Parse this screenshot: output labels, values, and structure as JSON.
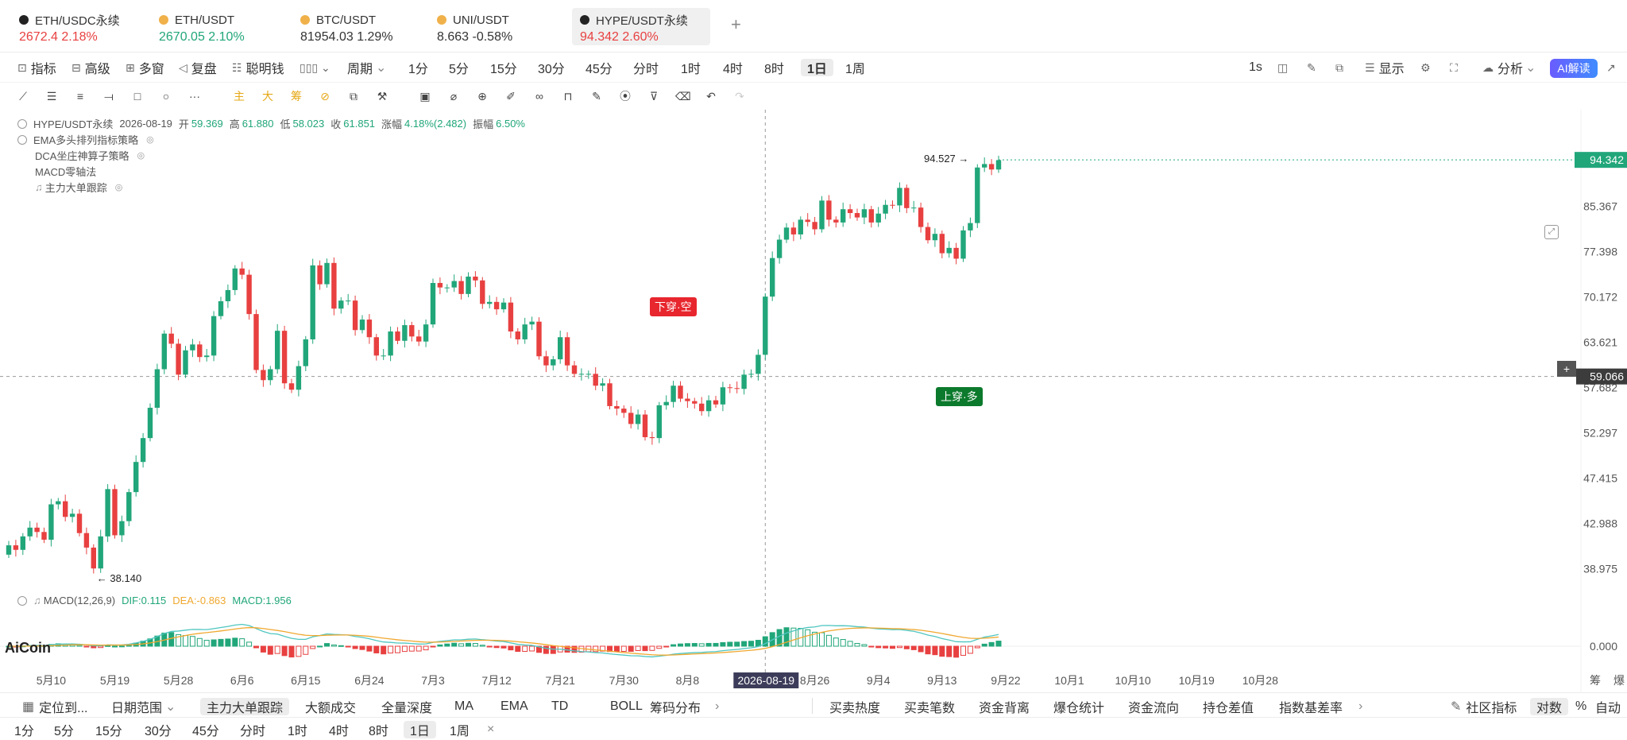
{
  "tabs": [
    {
      "name": "ETH/USDC永续",
      "price": "2672.4",
      "change": "2.18%",
      "dir": "down",
      "icon": "#222",
      "active": false
    },
    {
      "name": "ETH/USDT",
      "price": "2670.05",
      "change": "2.10%",
      "dir": "up",
      "icon": "#f0b14a",
      "active": false
    },
    {
      "name": "BTC/USDT",
      "price": "81954.03",
      "change": "1.29%",
      "dir": "plain",
      "icon": "#f0b14a",
      "active": false
    },
    {
      "name": "UNI/USDT",
      "price": "8.663",
      "change": "-0.58%",
      "dir": "plain",
      "icon": "#f0b14a",
      "active": false
    },
    {
      "name": "HYPE/USDT永续",
      "price": "94.342",
      "change": "2.60%",
      "dir": "down",
      "icon": "#222",
      "active": true
    }
  ],
  "toolbar": {
    "indicators": "指标",
    "advanced": "高级",
    "multi": "多窗",
    "replay": "复盘",
    "smart": "聪明钱",
    "period": "周期",
    "intervals": [
      "1分",
      "5分",
      "15分",
      "30分",
      "45分",
      "分时",
      "1时",
      "4时",
      "8时",
      "1日",
      "1周"
    ],
    "selected_interval": "1日",
    "onesec": "1s",
    "display": "显示",
    "analysis": "分析",
    "ai": "AI解读"
  },
  "legend": {
    "symbol": "HYPE/USDT永续",
    "date": "2026-08-19",
    "open_label": "开",
    "open": "59.369",
    "high_label": "高",
    "high": "61.880",
    "low_label": "低",
    "low": "58.023",
    "close_label": "收",
    "close": "61.851",
    "chg_label": "涨幅",
    "chg": "4.18%(2.482)",
    "amp_label": "振幅",
    "amp": "6.50%",
    "strategies": [
      "EMA多头排列指标策略",
      "DCA坐庄神算子策略",
      "MACD零轴法",
      "主力大单跟踪"
    ]
  },
  "macd_legend": {
    "name": "MACD(12,26,9)",
    "dif": "DIF:0.115",
    "dea": "DEA:-0.863",
    "macd": "MACD:1.956"
  },
  "signals": {
    "sell": "下穿·空",
    "buy": "上穿·多"
  },
  "markers": {
    "high": "94.527",
    "low": "38.140"
  },
  "price_tags": {
    "last": "94.342",
    "cross": "59.066"
  },
  "crosshair_date": "2026-08-19",
  "logo": "AiCoin",
  "colors": {
    "up": "#21a67a",
    "down": "#e84040",
    "dif": "#4fc6c0",
    "dea": "#f0a830"
  },
  "chart_data": {
    "type": "candlestick",
    "title": "HYPE/USDT永续",
    "y_ticks": [
      85.367,
      77.398,
      70.172,
      63.621,
      57.682,
      52.297,
      47.415,
      42.988,
      38.975
    ],
    "ylim": [
      37.5,
      96.5
    ],
    "log_scale": true,
    "x_ticks": [
      "5月10",
      "5月19",
      "5月28",
      "6月6",
      "6月15",
      "6月24",
      "7月3",
      "7月12",
      "7月21",
      "7月30",
      "8月8",
      "2026-08-19",
      "8月26",
      "9月4",
      "9月13",
      "9月22",
      "10月1",
      "10月10",
      "10月19",
      "10月28"
    ],
    "x_tick_index": [
      6,
      15,
      24,
      33,
      42,
      51,
      60,
      69,
      78,
      87,
      96,
      107,
      114,
      123,
      132,
      141,
      150,
      159,
      168,
      177
    ],
    "close": [
      41.0,
      40.6,
      41.8,
      42.6,
      42.2,
      41.5,
      44.8,
      45.1,
      43.6,
      43.9,
      42.1,
      40.8,
      39.0,
      41.8,
      46.3,
      41.9,
      43.2,
      46.0,
      49.1,
      51.7,
      55.2,
      60.0,
      64.8,
      63.4,
      59.3,
      62.5,
      63.3,
      61.6,
      61.8,
      67.3,
      69.5,
      71.2,
      74.6,
      73.6,
      67.6,
      59.9,
      58.6,
      60.0,
      65.2,
      58.2,
      57.4,
      60.4,
      64.0,
      75.1,
      72.1,
      75.5,
      68.4,
      69.6,
      69.6,
      65.3,
      66.8,
      64.3,
      61.8,
      61.8,
      65.1,
      63.8,
      66.0,
      64.4,
      63.7,
      66.1,
      72.3,
      71.6,
      71.6,
      72.6,
      70.6,
      73.3,
      72.7,
      69.1,
      69.4,
      68.3,
      69.3,
      65.1,
      64.0,
      66.1,
      66.5,
      61.7,
      60.5,
      61.3,
      64.3,
      60.5,
      59.4,
      59.4,
      59.4,
      57.9,
      58.2,
      55.4,
      55.1,
      54.6,
      53.3,
      54.4,
      51.8,
      51.7,
      55.5,
      55.9,
      57.9,
      56.3,
      56.0,
      55.7,
      54.8,
      56.1,
      55.6,
      57.7,
      57.6,
      57.5,
      59.3,
      59.4,
      61.9,
      70.2,
      76.3,
      79.4,
      81.5,
      80.3,
      82.9,
      82.5,
      81.2,
      86.4,
      82.9,
      82.4,
      84.8,
      84.1,
      83.3,
      84.8,
      82.4,
      84.0,
      85.6,
      85.5,
      88.8,
      85.0,
      85.1,
      81.6,
      79.3,
      80.4,
      77.1,
      78.0,
      76.2,
      81.0,
      82.3,
      92.8,
      93.5,
      92.4,
      94.3
    ],
    "open_note": "open of each candle equals previous close",
    "macd": {
      "dif_range": [
        -7,
        8
      ],
      "hist_values_note": "histogram shown as bars; green positive, red negative"
    }
  },
  "bottom": {
    "locate": "定位到...",
    "range": "日期范围",
    "tabs": [
      "主力大单跟踪",
      "大额成交",
      "全量深度",
      "MA",
      "EMA",
      "TD",
      "BOLL",
      "筹码分布"
    ],
    "tabs2": [
      "买卖热度",
      "买卖笔数",
      "资金背离",
      "爆仓统计",
      "资金流向",
      "持仓差值",
      "指数基差率"
    ],
    "community": "社区指标",
    "log": "对数",
    "pct": "%",
    "auto": "自动",
    "intervals": [
      "1分",
      "5分",
      "15分",
      "30分",
      "45分",
      "分时",
      "1时",
      "4时",
      "8时",
      "1日",
      "1周"
    ],
    "selected_interval": "1日",
    "axis_right": [
      "筹",
      "爆"
    ]
  }
}
